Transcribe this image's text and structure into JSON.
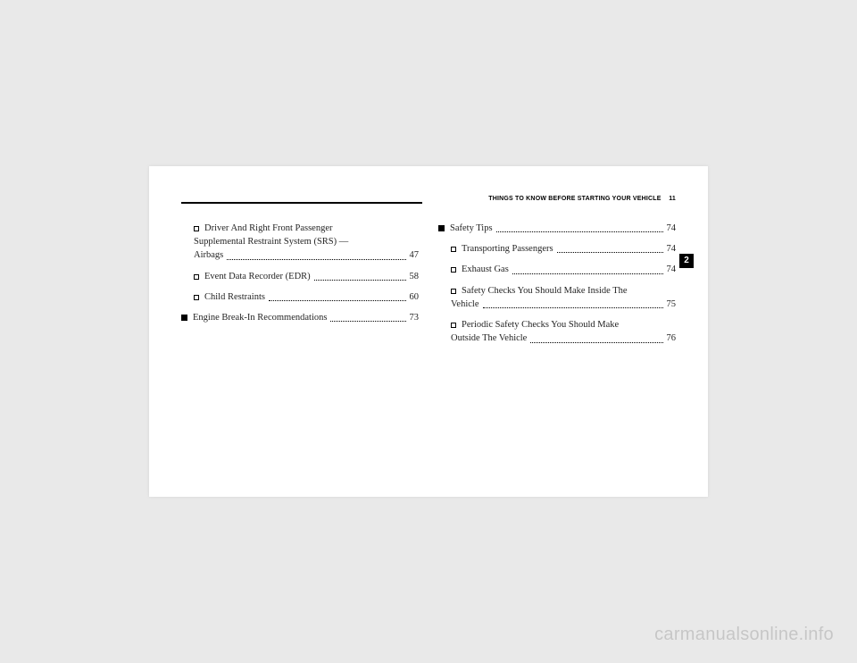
{
  "header": {
    "section_title": "THINGS TO KNOW BEFORE STARTING YOUR VEHICLE",
    "page_number": "11"
  },
  "side_tab": "2",
  "toc": {
    "left": [
      {
        "level": "sub",
        "lines": [
          "Driver And Right Front Passenger",
          "Supplemental Restraint System (SRS) —"
        ],
        "last": "Airbags",
        "page": "47"
      },
      {
        "level": "sub",
        "lines": [],
        "last": "Event Data Recorder (EDR)",
        "page": "58"
      },
      {
        "level": "sub",
        "lines": [],
        "last": "Child Restraints",
        "page": "60"
      },
      {
        "level": "main",
        "lines": [],
        "last": "Engine Break-In Recommendations",
        "page": "73"
      }
    ],
    "right": [
      {
        "level": "main",
        "lines": [],
        "last": "Safety Tips",
        "page": "74"
      },
      {
        "level": "sub",
        "lines": [],
        "last": "Transporting Passengers",
        "page": "74"
      },
      {
        "level": "sub",
        "lines": [],
        "last": "Exhaust Gas",
        "page": "74"
      },
      {
        "level": "sub",
        "lines": [
          "Safety Checks You Should Make Inside The"
        ],
        "last": "Vehicle",
        "page": "75"
      },
      {
        "level": "sub",
        "lines": [
          "Periodic Safety Checks You Should Make"
        ],
        "last": "Outside The Vehicle",
        "page": "76"
      }
    ]
  },
  "watermark": "carmanualsonline.info"
}
